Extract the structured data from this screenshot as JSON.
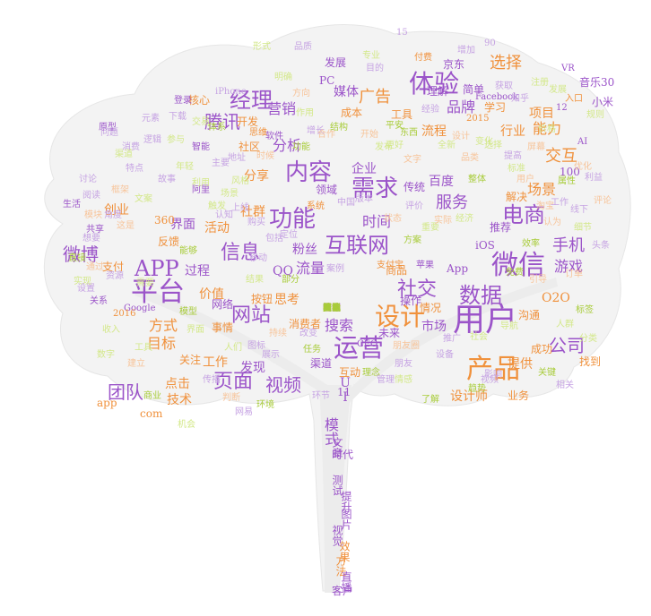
{
  "palette": {
    "purple": "#9b54c9",
    "orange": "#f0913c",
    "green": "#a8cc3a",
    "lavender": "#c6a3e3",
    "peach": "#f7c49a",
    "lime": "#d3e889",
    "trunk": "#ededed"
  },
  "words": [
    {
      "t": "用户",
      "c": "purple"
    },
    {
      "t": "产品",
      "c": "orange"
    },
    {
      "t": "需求",
      "c": "purple"
    },
    {
      "t": "微信",
      "c": "purple"
    },
    {
      "t": "内容",
      "c": "purple"
    },
    {
      "t": "平台",
      "c": "purple"
    },
    {
      "t": "设计",
      "c": "orange"
    },
    {
      "t": "运营",
      "c": "purple"
    },
    {
      "t": "体验",
      "c": "purple"
    },
    {
      "t": "功能",
      "c": "purple"
    },
    {
      "t": "电商",
      "c": "purple"
    },
    {
      "t": "APP",
      "c": "purple"
    },
    {
      "t": "互联网",
      "c": "purple"
    },
    {
      "t": "数据",
      "c": "purple"
    },
    {
      "t": "社交",
      "c": "purple"
    },
    {
      "t": "经理",
      "c": "purple"
    },
    {
      "t": "信息",
      "c": "purple"
    },
    {
      "t": "网站",
      "c": "purple"
    },
    {
      "t": "公司",
      "c": "purple"
    },
    {
      "t": "页面",
      "c": "purple"
    },
    {
      "t": "视频",
      "c": "purple"
    },
    {
      "t": "团队",
      "c": "purple"
    },
    {
      "t": "微博",
      "c": "purple"
    },
    {
      "t": "手机",
      "c": "purple"
    },
    {
      "t": "服务",
      "c": "purple"
    },
    {
      "t": "腾讯",
      "c": "purple"
    },
    {
      "t": "广告",
      "c": "orange"
    },
    {
      "t": "时间",
      "c": "purple"
    },
    {
      "t": "营销",
      "c": "purple"
    },
    {
      "t": "品牌",
      "c": "purple"
    },
    {
      "t": "选择",
      "c": "orange"
    },
    {
      "t": "交互",
      "c": "orange"
    },
    {
      "t": "场景",
      "c": "orange"
    },
    {
      "t": "方式",
      "c": "orange"
    },
    {
      "t": "目标",
      "c": "orange"
    },
    {
      "t": "流量",
      "c": "purple"
    },
    {
      "t": "搜索",
      "c": "purple"
    },
    {
      "t": "媒体",
      "c": "purple"
    },
    {
      "t": "分析",
      "c": "purple"
    },
    {
      "t": "企业",
      "c": "purple"
    },
    {
      "t": "百度",
      "c": "purple"
    },
    {
      "t": "游戏",
      "c": "purple"
    },
    {
      "t": "能力",
      "c": "orange"
    },
    {
      "t": "行业",
      "c": "orange"
    },
    {
      "t": "项目",
      "c": "orange"
    },
    {
      "t": "O2O",
      "c": "orange"
    },
    {
      "t": "分享",
      "c": "orange"
    },
    {
      "t": "工作",
      "c": "orange"
    },
    {
      "t": "技术",
      "c": "orange"
    },
    {
      "t": "价值",
      "c": "orange"
    },
    {
      "t": "活动",
      "c": "orange"
    },
    {
      "t": "社群",
      "c": "orange"
    },
    {
      "t": "粉丝",
      "c": "purple"
    },
    {
      "t": "QQ",
      "c": "purple"
    },
    {
      "t": "App",
      "c": "purple"
    },
    {
      "t": "市场",
      "c": "purple"
    },
    {
      "t": "模式",
      "c": "purple"
    },
    {
      "t": "UI",
      "c": "purple"
    },
    {
      "t": "提供",
      "c": "orange"
    },
    {
      "t": "成功",
      "c": "orange"
    },
    {
      "t": "点击",
      "c": "orange"
    },
    {
      "t": "com",
      "c": "orange"
    },
    {
      "t": "app",
      "c": "orange"
    },
    {
      "t": "思考",
      "c": "orange"
    },
    {
      "t": "发现",
      "c": "purple"
    },
    {
      "t": "渠道",
      "c": "purple"
    },
    {
      "t": "流程",
      "c": "orange"
    },
    {
      "t": "工具",
      "c": "orange"
    },
    {
      "t": "成本",
      "c": "orange"
    },
    {
      "t": "创业",
      "c": "orange"
    },
    {
      "t": "核心",
      "c": "orange"
    },
    {
      "t": "简单",
      "c": "purple"
    },
    {
      "t": "京东",
      "c": "purple"
    },
    {
      "t": "理解",
      "c": "purple"
    },
    {
      "t": "学习",
      "c": "orange"
    },
    {
      "t": "音乐",
      "c": "purple"
    },
    {
      "t": "小米",
      "c": "purple"
    },
    {
      "t": "发展",
      "c": "purple"
    },
    {
      "t": "开发",
      "c": "orange"
    },
    {
      "t": "社区",
      "c": "orange"
    },
    {
      "t": "领域",
      "c": "purple"
    },
    {
      "t": "传统",
      "c": "purple"
    },
    {
      "t": "解决",
      "c": "orange"
    },
    {
      "t": "推荐",
      "c": "purple"
    },
    {
      "t": "界面",
      "c": "purple"
    },
    {
      "t": "过程",
      "c": "purple"
    },
    {
      "t": "反馈",
      "c": "orange"
    },
    {
      "t": "网络",
      "c": "purple"
    },
    {
      "t": "关注",
      "c": "orange"
    },
    {
      "t": "事情",
      "c": "orange"
    },
    {
      "t": "消费者",
      "c": "orange"
    },
    {
      "t": "商品",
      "c": "orange"
    },
    {
      "t": "情况",
      "c": "orange"
    },
    {
      "t": "操作",
      "c": "purple"
    },
    {
      "t": "沟通",
      "c": "orange"
    },
    {
      "t": "设计师",
      "c": "orange"
    },
    {
      "t": "业务",
      "c": "orange"
    },
    {
      "t": "找到",
      "c": "orange"
    },
    {
      "t": "未来",
      "c": "purple"
    },
    {
      "t": "文章",
      "c": "purple"
    },
    {
      "t": "时代",
      "c": "purple"
    },
    {
      "t": "测试",
      "c": "purple"
    },
    {
      "t": "提升",
      "c": "purple"
    },
    {
      "t": "图片",
      "c": "purple"
    },
    {
      "t": "视觉",
      "c": "purple"
    },
    {
      "t": "效果",
      "c": "orange"
    },
    {
      "t": "方法",
      "c": "orange"
    },
    {
      "t": "直播",
      "c": "purple"
    },
    {
      "t": "客户",
      "c": "purple"
    },
    {
      "t": "支付",
      "c": "orange"
    },
    {
      "t": "360",
      "c": "orange"
    },
    {
      "t": "按钮",
      "c": "orange"
    },
    {
      "t": "互动",
      "c": "orange"
    },
    {
      "t": "iOS",
      "c": "purple"
    },
    {
      "t": "Google",
      "c": "purple"
    },
    {
      "t": "PC",
      "c": "purple"
    },
    {
      "t": "VR",
      "c": "purple"
    },
    {
      "t": "30",
      "c": "purple"
    },
    {
      "t": "12",
      "c": "purple"
    },
    {
      "t": "100",
      "c": "purple"
    },
    {
      "t": "11",
      "c": "purple"
    },
    {
      "t": "15",
      "c": "lavender"
    },
    {
      "t": "90",
      "c": "lavender"
    },
    {
      "t": "2015",
      "c": "orange"
    },
    {
      "t": "2016",
      "c": "orange"
    },
    {
      "t": "AI",
      "c": "purple"
    },
    {
      "t": "CEO",
      "c": "purple"
    },
    {
      "t": "Facebook",
      "c": "purple"
    },
    {
      "t": "iPhone",
      "c": "lavender"
    },
    {
      "t": "淘宝",
      "c": "peach"
    },
    {
      "t": "苹果",
      "c": "purple"
    },
    {
      "t": "优化",
      "c": "peach"
    },
    {
      "t": "屏幕",
      "c": "peach"
    },
    {
      "t": "生活",
      "c": "purple"
    },
    {
      "t": "阅读",
      "c": "lavender"
    },
    {
      "t": "设置",
      "c": "lavender"
    },
    {
      "t": "关系",
      "c": "purple"
    },
    {
      "t": "这是",
      "c": "peach"
    },
    {
      "t": "共享",
      "c": "purple"
    },
    {
      "t": "逻辑",
      "c": "lavender"
    },
    {
      "t": "原型",
      "c": "purple"
    },
    {
      "t": "智能",
      "c": "purple"
    },
    {
      "t": "软件",
      "c": "purple"
    },
    {
      "t": "思维",
      "c": "orange"
    },
    {
      "t": "登录",
      "c": "purple"
    },
    {
      "t": "支付宝",
      "c": "orange"
    },
    {
      "t": "案例",
      "c": "lavender"
    },
    {
      "t": "平安",
      "c": "green"
    },
    {
      "t": "东西",
      "c": "green"
    },
    {
      "t": "付费",
      "c": "orange"
    },
    {
      "t": "阿里",
      "c": "purple"
    },
    {
      "t": "品质",
      "c": "lavender"
    },
    {
      "t": "购买",
      "c": "lavender"
    },
    {
      "t": "朋友圈",
      "c": "peach"
    },
    {
      "t": "相关",
      "c": "lavender"
    },
    {
      "t": "朋友",
      "c": "lavender"
    },
    {
      "t": "影响",
      "c": "lavender"
    },
    {
      "t": "入口",
      "c": "orange"
    },
    {
      "t": "知乎",
      "c": "lavender"
    },
    {
      "t": "上线",
      "c": "lavender"
    },
    {
      "t": "定位",
      "c": "lavender"
    },
    {
      "t": "移动",
      "c": "lavender"
    },
    {
      "t": "包括",
      "c": "lavender"
    },
    {
      "t": "获取",
      "c": "lavender"
    },
    {
      "t": "视频",
      "c": "lavender"
    },
    {
      "t": "传播",
      "c": "lavender"
    },
    {
      "t": "设备",
      "c": "lavender"
    },
    {
      "t": "推广",
      "c": "lavender"
    },
    {
      "t": "展示",
      "c": "lavender"
    },
    {
      "t": "图标",
      "c": "lavender"
    },
    {
      "t": "管理",
      "c": "lavender"
    },
    {
      "t": "想要",
      "c": "lavender"
    },
    {
      "t": "资源",
      "c": "lavender"
    },
    {
      "t": "角度",
      "c": "lavender"
    },
    {
      "t": "问题",
      "c": "lavender"
    },
    {
      "t": "元素",
      "c": "lavender"
    },
    {
      "t": "消费",
      "c": "lavender"
    },
    {
      "t": "下载",
      "c": "lavender"
    },
    {
      "t": "认知",
      "c": "lavender"
    },
    {
      "t": "改变",
      "c": "lavender"
    },
    {
      "t": "网易",
      "c": "lavender"
    },
    {
      "t": "环节",
      "c": "lavender"
    },
    {
      "t": "经验",
      "c": "lavender"
    },
    {
      "t": "工作",
      "c": "lavender"
    },
    {
      "t": "增长",
      "c": "lavender"
    },
    {
      "t": "地址",
      "c": "lavender"
    },
    {
      "t": "线下",
      "c": "lavender"
    },
    {
      "t": "头条",
      "c": "lavender"
    },
    {
      "t": "实现",
      "c": "lime"
    },
    {
      "t": "机会",
      "c": "lime"
    },
    {
      "t": "结果",
      "c": "lime"
    },
    {
      "t": "专业",
      "c": "lime"
    },
    {
      "t": "变化",
      "c": "lime"
    },
    {
      "t": "发布",
      "c": "lime"
    },
    {
      "t": "形式",
      "c": "lime"
    },
    {
      "t": "价格",
      "c": "lime"
    },
    {
      "t": "标准",
      "c": "lime"
    },
    {
      "t": "经济",
      "c": "lime"
    },
    {
      "t": "作用",
      "c": "lime"
    },
    {
      "t": "文案",
      "c": "lime"
    },
    {
      "t": "参与",
      "c": "lime"
    },
    {
      "t": "规则",
      "c": "lime"
    },
    {
      "t": "重要",
      "c": "lime"
    },
    {
      "t": "选择",
      "c": "lime"
    },
    {
      "t": "细节",
      "c": "lime"
    },
    {
      "t": "更好",
      "c": "lime"
    },
    {
      "t": "人群",
      "c": "lime"
    },
    {
      "t": "分类",
      "c": "lime"
    },
    {
      "t": "年轻",
      "c": "lime"
    },
    {
      "t": "明确",
      "c": "lime"
    },
    {
      "t": "导航",
      "c": "lime"
    },
    {
      "t": "触发",
      "c": "lime"
    },
    {
      "t": "社会",
      "c": "lime"
    },
    {
      "t": "全新",
      "c": "lime"
    },
    {
      "t": "数字",
      "c": "lime"
    },
    {
      "t": "需要",
      "c": "lime"
    },
    {
      "t": "人们",
      "c": "lime"
    },
    {
      "t": "情感",
      "c": "lime"
    },
    {
      "t": "风格",
      "c": "lime"
    },
    {
      "t": "利用",
      "c": "lime"
    },
    {
      "t": "文字",
      "c": "peach"
    },
    {
      "t": "方向",
      "c": "peach"
    },
    {
      "t": "品类",
      "c": "peach"
    },
    {
      "t": "合作",
      "c": "peach"
    },
    {
      "t": "订单",
      "c": "peach"
    },
    {
      "t": "通过",
      "c": "peach"
    },
    {
      "t": "建立",
      "c": "peach"
    },
    {
      "t": "持续",
      "c": "peach"
    },
    {
      "t": "判断",
      "c": "peach"
    },
    {
      "t": "引导",
      "c": "peach"
    },
    {
      "t": "认为",
      "c": "peach"
    },
    {
      "t": "评论",
      "c": "peach"
    },
    {
      "t": "模块",
      "c": "peach"
    },
    {
      "t": "框架",
      "c": "peach"
    },
    {
      "t": "状态",
      "c": "peach"
    },
    {
      "t": "实际",
      "c": "peach"
    },
    {
      "t": "功能",
      "c": "green"
    },
    {
      "t": "体系",
      "c": "green"
    },
    {
      "t": "结构",
      "c": "green"
    },
    {
      "t": "属性",
      "c": "green"
    },
    {
      "t": "直接",
      "c": "green"
    },
    {
      "t": "能够",
      "c": "green"
    },
    {
      "t": "部分",
      "c": "green"
    },
    {
      "t": "方案",
      "c": "green"
    },
    {
      "t": "免费",
      "c": "green"
    },
    {
      "t": "整体",
      "c": "green"
    },
    {
      "t": "效率",
      "c": "green"
    },
    {
      "t": "关键",
      "c": "green"
    },
    {
      "t": "理念",
      "c": "green"
    },
    {
      "t": "了解",
      "c": "green"
    },
    {
      "t": "商业",
      "c": "green"
    },
    {
      "t": "模型",
      "c": "green"
    },
    {
      "t": "任务",
      "c": "green"
    },
    {
      "t": "趋势",
      "c": "green"
    },
    {
      "t": "标签",
      "c": "green"
    },
    {
      "t": "环境",
      "c": "green"
    },
    {
      "t": "版本",
      "c": "lavender"
    },
    {
      "t": "评价",
      "c": "lavender"
    },
    {
      "t": "系统",
      "c": "orange"
    },
    {
      "t": "中国",
      "c": "lavender"
    },
    {
      "t": "主要",
      "c": "lavender"
    },
    {
      "t": "提高",
      "c": "lavender"
    },
    {
      "t": "利益",
      "c": "lavender"
    },
    {
      "t": "讨论",
      "c": "lavender"
    },
    {
      "t": "特点",
      "c": "lavender"
    },
    {
      "t": "故事",
      "c": "lavender"
    },
    {
      "t": "目的",
      "c": "lavender"
    },
    {
      "t": "增加",
      "c": "lavender"
    },
    {
      "t": "发展",
      "c": "lime"
    },
    {
      "t": "注册",
      "c": "lime"
    },
    {
      "t": "交易",
      "c": "lime"
    },
    {
      "t": "渠道",
      "c": "lime"
    },
    {
      "t": "收入",
      "c": "lime"
    },
    {
      "t": "工具",
      "c": "lime"
    },
    {
      "t": "界面",
      "c": "lime"
    },
    {
      "t": "场景",
      "c": "lime"
    },
    {
      "t": "时候",
      "c": "peach"
    },
    {
      "t": "开始",
      "c": "peach"
    },
    {
      "t": "设计",
      "c": "peach"
    },
    {
      "t": "用户",
      "c": "peach"
    },
    {
      "t": "数据",
      "c": "peach"
    },
    {
      "t": "时间",
      "c": "peach"
    },
    {
      "t": "行为",
      "c": "peach"
    },
    {
      "t": "习惯",
      "c": "peach"
    },
    {
      "t": "两个",
      "c": "lavender"
    },
    {
      "t": "之间",
      "c": "lavender"
    },
    {
      "t": "地图",
      "c": "lavender"
    },
    {
      "t": "页面",
      "c": "lavender"
    },
    {
      "t": "首页",
      "c": "lavender"
    },
    {
      "t": "内容",
      "c": "lavender"
    },
    {
      "t": "信息",
      "c": "lavender"
    },
    {
      "t": "价值",
      "c": "lavender"
    },
    {
      "t": "思路",
      "c": "green"
    },
    {
      "t": "核心",
      "c": "green"
    },
    {
      "t": "目标",
      "c": "green"
    },
    {
      "t": "概念",
      "c": "green"
    },
    {
      "t": "团队",
      "c": "green"
    },
    {
      "t": "资讯",
      "c": "green"
    },
    {
      "t": "技能",
      "c": "green"
    },
    {
      "t": "类型",
      "c": "green"
    }
  ]
}
